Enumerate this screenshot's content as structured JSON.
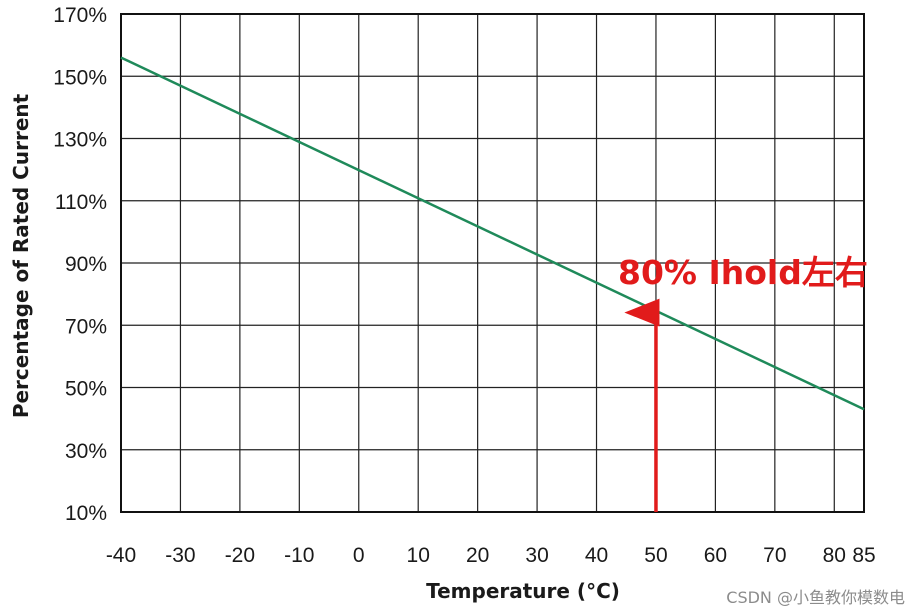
{
  "chart_data": {
    "type": "line",
    "xlabel": "Temperature (°C)",
    "ylabel": "Percentage of Rated Current",
    "x_ticks": [
      -40,
      -30,
      -20,
      -10,
      0,
      10,
      20,
      30,
      40,
      50,
      60,
      70,
      80,
      85
    ],
    "y_ticks": [
      10,
      30,
      50,
      70,
      90,
      110,
      130,
      150,
      170
    ],
    "y_tick_labels": [
      "10%",
      "30%",
      "50%",
      "70%",
      "90%",
      "110%",
      "130%",
      "150%",
      "170%"
    ],
    "xlim": [
      -40,
      85
    ],
    "ylim": [
      10,
      170
    ],
    "grid": true,
    "series": [
      {
        "color": "#1f8a5a",
        "x": [
          -40,
          85
        ],
        "y": [
          156,
          43
        ]
      }
    ],
    "annotations": [
      {
        "text": "80% Ihold左右",
        "color": "#e11b1b",
        "arrow_x": 50,
        "arrow_from_y": 10,
        "arrow_to_y": 76
      }
    ]
  },
  "watermark": "CSDN @小鱼教你模数电"
}
